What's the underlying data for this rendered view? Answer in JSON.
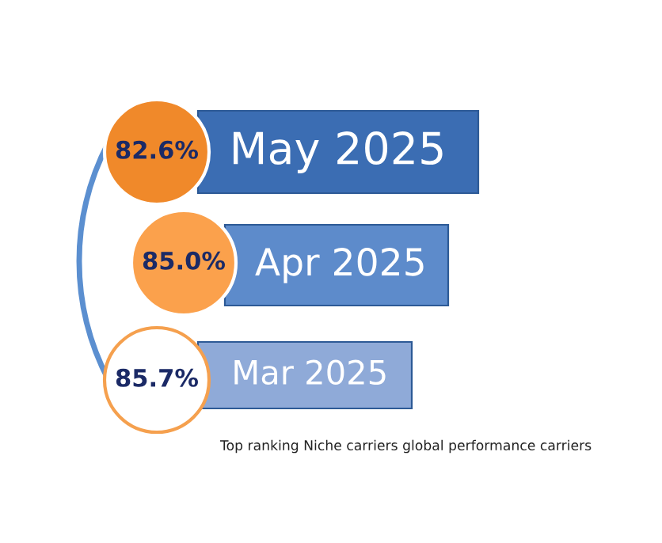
{
  "chart_data": {
    "type": "other",
    "categories": [
      "May 2025",
      "Apr 2025",
      "Mar 2025"
    ],
    "values": [
      82.6,
      85.0,
      85.7
    ],
    "value_labels": [
      "82.6%",
      "85.0%",
      "85.7%"
    ],
    "annotations": [
      "Top ranking Niche carriers global performance carriers"
    ]
  }
}
